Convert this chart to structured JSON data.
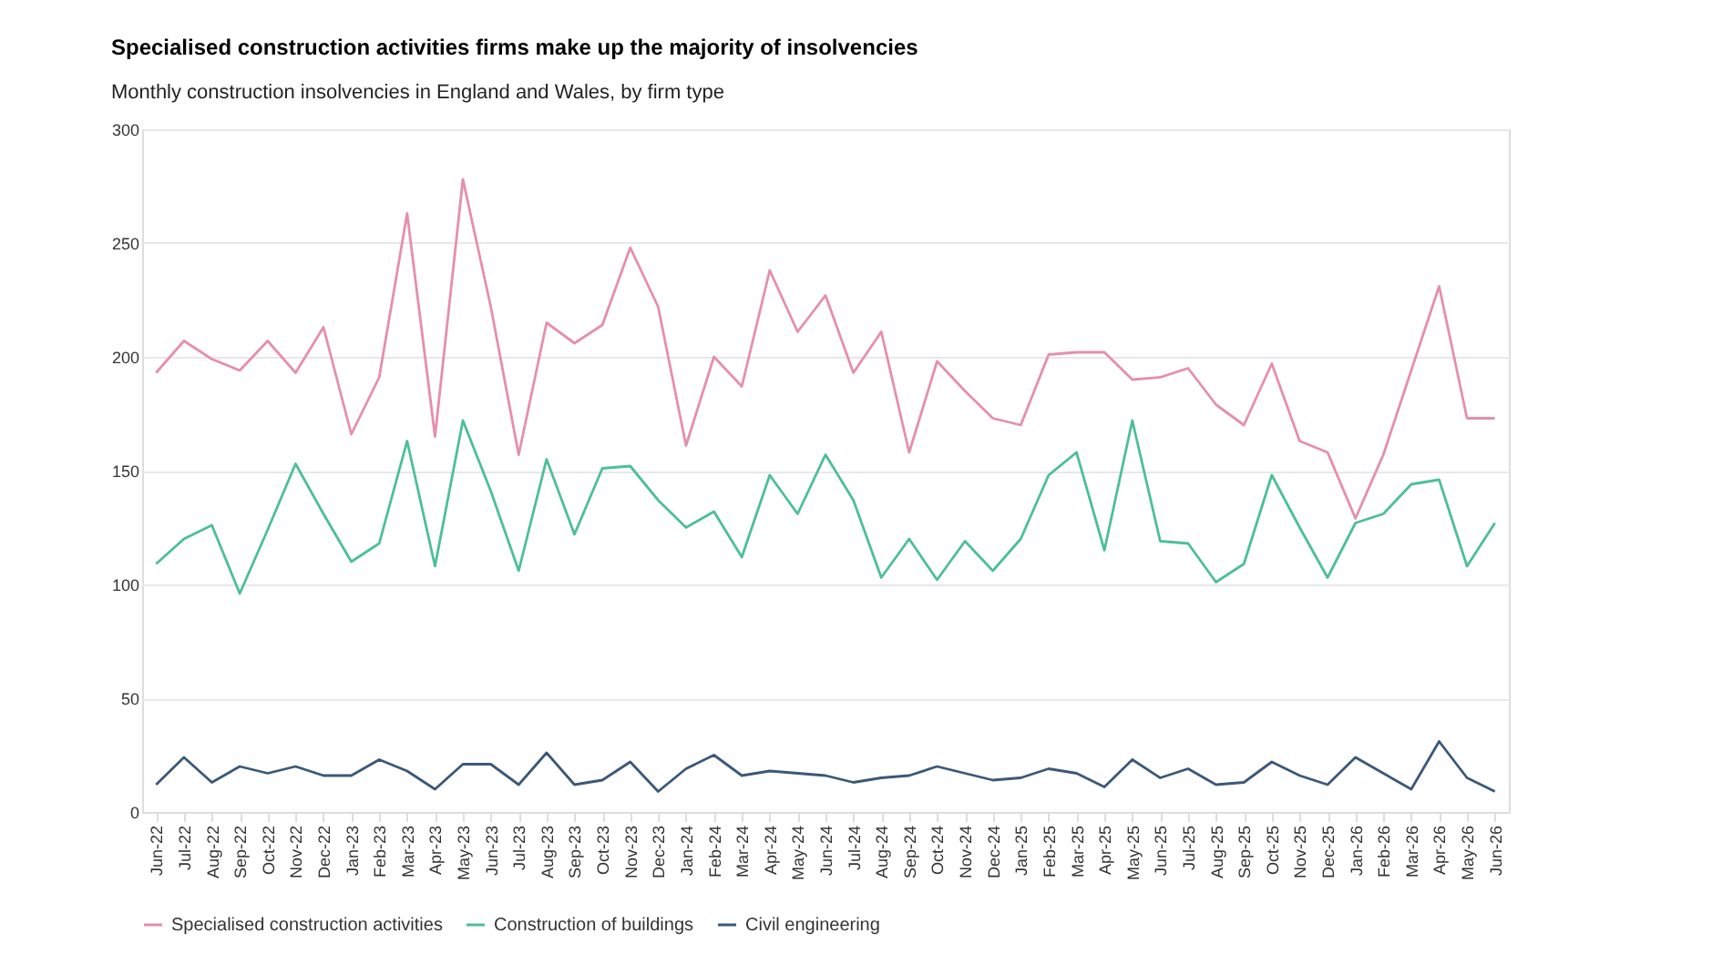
{
  "chart_data": {
    "type": "line",
    "title": "Specialised construction activities firms make up the majority of insolvencies",
    "subtitle": "Monthly construction insolvencies in England and Wales, by firm type",
    "categories": [
      "Jun-22",
      "Jul-22",
      "Aug-22",
      "Sep-22",
      "Oct-22",
      "Nov-22",
      "Dec-22",
      "Jan-23",
      "Feb-23",
      "Mar-23",
      "Apr-23",
      "May-23",
      "Jun-23",
      "Jul-23",
      "Aug-23",
      "Sep-23",
      "Oct-23",
      "Nov-23",
      "Dec-23",
      "Jan-24",
      "Feb-24",
      "Mar-24",
      "Apr-24",
      "May-24",
      "Jun-24",
      "Jul-24",
      "Aug-24",
      "Sep-24",
      "Oct-24",
      "Nov-24",
      "Dec-24",
      "Jan-25",
      "Feb-25",
      "Mar-25",
      "Apr-25",
      "May-25",
      "Jun-25",
      "Jul-25",
      "Aug-25",
      "Sep-25",
      "Oct-25",
      "Nov-25",
      "Dec-25",
      "Jan-26",
      "Feb-26",
      "Mar-26",
      "Apr-26",
      "May-26",
      "Jun-26"
    ],
    "series": [
      {
        "name": "Specialised construction activities",
        "color": "#e58fab",
        "values": [
          193,
          207,
          199,
          194,
          207,
          193,
          213,
          166,
          191,
          263,
          165,
          278,
          222,
          157,
          215,
          206,
          214,
          248,
          222,
          161,
          200,
          187,
          238,
          211,
          227,
          193,
          211,
          158,
          198,
          185,
          173,
          170,
          201,
          202,
          202,
          190,
          191,
          195,
          179,
          170,
          197,
          163,
          158,
          129,
          157,
          194,
          231,
          173,
          173
        ]
      },
      {
        "name": "Construction of buildings",
        "color": "#4dbf96",
        "values": [
          109,
          120,
          126,
          96,
          124,
          153,
          131,
          110,
          118,
          163,
          108,
          172,
          141,
          106,
          155,
          122,
          151,
          152,
          137,
          125,
          132,
          112,
          148,
          131,
          157,
          137,
          103,
          120,
          102,
          119,
          106,
          120,
          148,
          158,
          115,
          172,
          119,
          118,
          101,
          109,
          148,
          125,
          103,
          127,
          131,
          144,
          146,
          108,
          127
        ]
      },
      {
        "name": "Civil engineering",
        "color": "#3b5878",
        "values": [
          12,
          24,
          13,
          20,
          17,
          20,
          16,
          16,
          23,
          18,
          10,
          21,
          21,
          12,
          26,
          12,
          14,
          22,
          9,
          19,
          25,
          16,
          18,
          17,
          16,
          13,
          15,
          16,
          20,
          17,
          14,
          15,
          19,
          17,
          11,
          23,
          15,
          19,
          12,
          13,
          22,
          16,
          12,
          24,
          17,
          10,
          31,
          15,
          9
        ]
      }
    ],
    "ylim": [
      0,
      300
    ],
    "yticks": [
      0,
      50,
      100,
      150,
      200,
      250,
      300
    ],
    "grid": "y",
    "legend": "bottom",
    "line_style": "solid",
    "marker": "none"
  }
}
